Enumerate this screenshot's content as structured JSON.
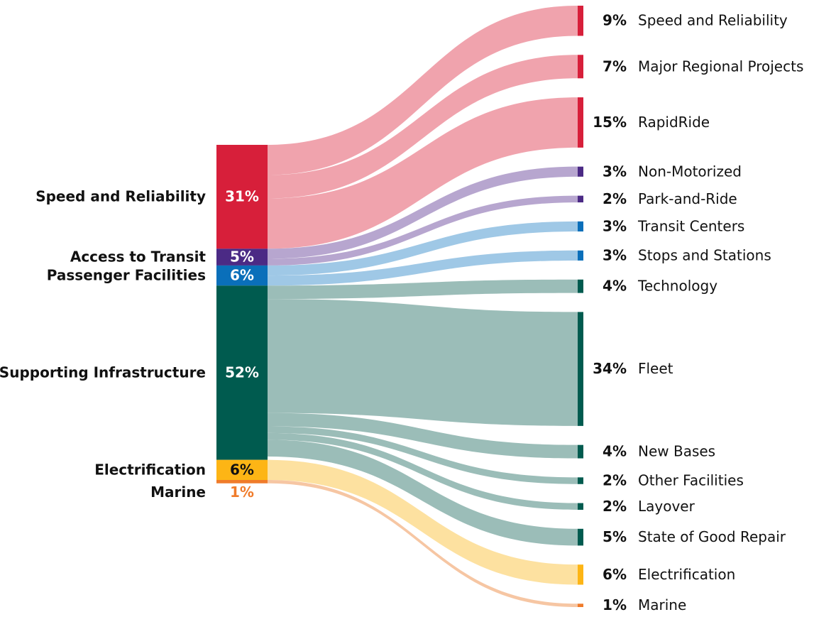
{
  "chart_data": {
    "type": "sankey",
    "sources": [
      {
        "name": "Speed and Reliability",
        "value": 31,
        "value_label": "31%",
        "color": "#d71f3a",
        "link_color": "#f0a3ad"
      },
      {
        "name": "Access to Transit",
        "value": 5,
        "value_label": "5%",
        "color": "#4b2a85",
        "link_color": "#b7a6cf"
      },
      {
        "name": "Passenger Facilities",
        "value": 6,
        "value_label": "6%",
        "color": "#0a6fba",
        "link_color": "#9fc8e6"
      },
      {
        "name": "Supporting Infrastructure",
        "value": 52,
        "value_label": "52%",
        "color": "#005b4f",
        "link_color": "#9bbdb8"
      },
      {
        "name": "Electrification",
        "value": 6,
        "value_label": "6%",
        "color": "#fdb515",
        "link_color": "#fde1a0"
      },
      {
        "name": "Marine",
        "value": 1,
        "value_label": "1%",
        "color": "#f07b2a",
        "link_color": "#f6c6a3"
      }
    ],
    "targets": [
      {
        "name": "Speed and Reliability",
        "value": 9,
        "value_label": "9%",
        "source": 0
      },
      {
        "name": "Major Regional Projects",
        "value": 7,
        "value_label": "7%",
        "source": 0
      },
      {
        "name": "RapidRide",
        "value": 15,
        "value_label": "15%",
        "source": 0
      },
      {
        "name": "Non-Motorized",
        "value": 3,
        "value_label": "3%",
        "source": 1
      },
      {
        "name": "Park-and-Ride",
        "value": 2,
        "value_label": "2%",
        "source": 1
      },
      {
        "name": "Transit Centers",
        "value": 3,
        "value_label": "3%",
        "source": 2
      },
      {
        "name": "Stops and Stations",
        "value": 3,
        "value_label": "3%",
        "source": 2
      },
      {
        "name": "Technology",
        "value": 4,
        "value_label": "4%",
        "source": 3
      },
      {
        "name": "Fleet",
        "value": 34,
        "value_label": "34%",
        "source": 3
      },
      {
        "name": "New Bases",
        "value": 4,
        "value_label": "4%",
        "source": 3
      },
      {
        "name": "Other Facilities",
        "value": 2,
        "value_label": "2%",
        "source": 3
      },
      {
        "name": "Layover",
        "value": 2,
        "value_label": "2%",
        "source": 3
      },
      {
        "name": "State of Good Repair",
        "value": 5,
        "value_label": "5%",
        "source": 3
      },
      {
        "name": "Electrification",
        "value": 6,
        "value_label": "6%",
        "source": 4
      },
      {
        "name": "Marine",
        "value": 1,
        "value_label": "1%",
        "source": 5
      }
    ]
  }
}
